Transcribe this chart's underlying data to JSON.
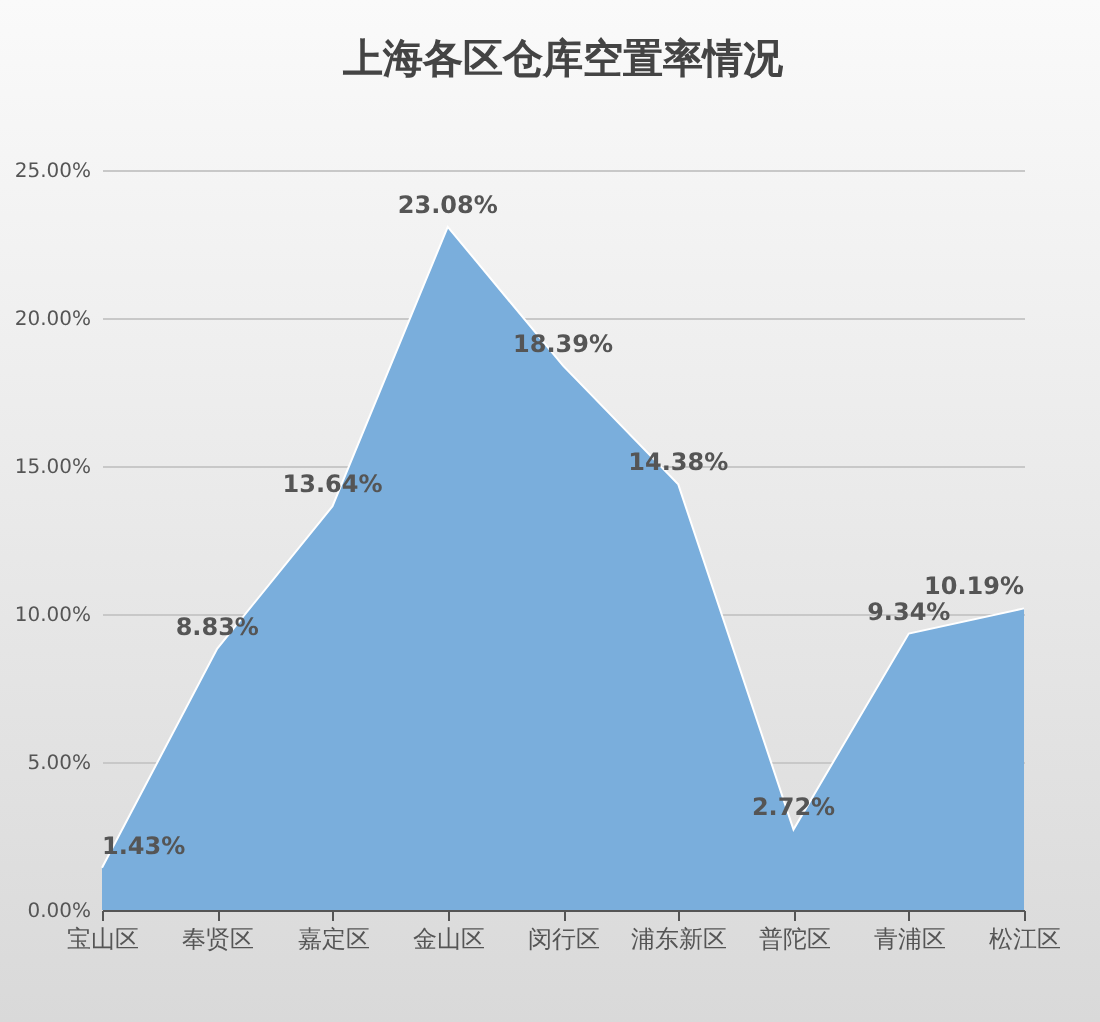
{
  "chart_data": {
    "type": "area",
    "title": "上海各区仓库空置率情况",
    "categories": [
      "宝山区",
      "奉贤区",
      "嘉定区",
      "金山区",
      "闵行区",
      "浦东新区",
      "普陀区",
      "青浦区",
      "松江区"
    ],
    "values": [
      1.43,
      8.83,
      13.64,
      23.08,
      18.39,
      14.38,
      2.72,
      9.34,
      10.19
    ],
    "value_labels": [
      "1.43%",
      "8.83%",
      "13.64%",
      "23.08%",
      "18.39%",
      "14.38%",
      "2.72%",
      "9.34%",
      "10.19%"
    ],
    "color": "#7aaedc",
    "ylim": [
      0,
      25
    ],
    "yticks": [
      {
        "value": 0,
        "label": "0.00%"
      },
      {
        "value": 5,
        "label": "5.00%"
      },
      {
        "value": 10,
        "label": "10.00%"
      },
      {
        "value": 15,
        "label": "15.00%"
      },
      {
        "value": 20,
        "label": "20.00%"
      },
      {
        "value": 25,
        "label": "25.00%"
      }
    ],
    "grid": "y"
  }
}
